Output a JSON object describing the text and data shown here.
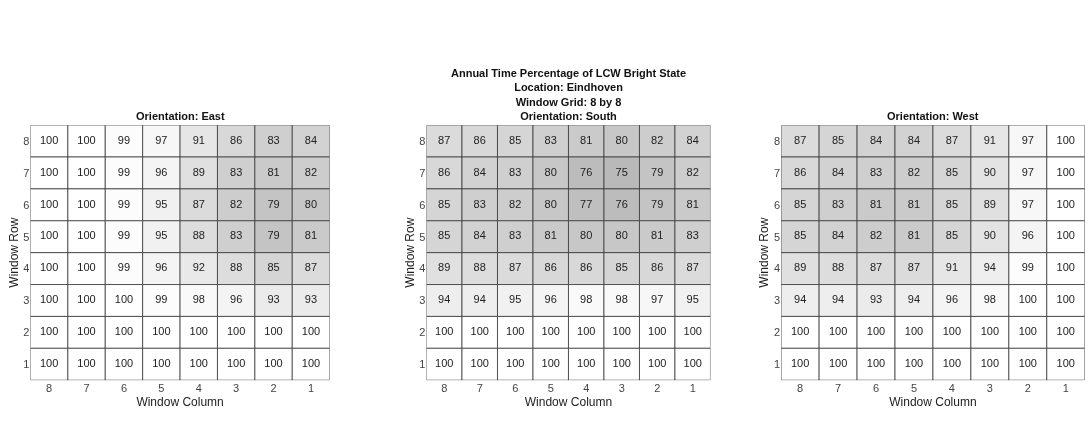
{
  "chart_data": [
    {
      "type": "heatmap",
      "title": "Orientation: East",
      "xlabel": "Window Column",
      "ylabel": "Window Row",
      "data_labels": true,
      "categories": [
        "8",
        "7",
        "6",
        "5",
        "4",
        "3",
        "2",
        "1"
      ],
      "y_categories": [
        "8",
        "7",
        "6",
        "5",
        "4",
        "3",
        "2",
        "1"
      ],
      "cells": [
        [
          100,
          100,
          99,
          97,
          91,
          86,
          83,
          84
        ],
        [
          100,
          100,
          99,
          96,
          89,
          83,
          81,
          82
        ],
        [
          100,
          100,
          99,
          95,
          87,
          82,
          79,
          80
        ],
        [
          100,
          100,
          99,
          95,
          88,
          83,
          79,
          81
        ],
        [
          100,
          100,
          99,
          96,
          92,
          88,
          85,
          87
        ],
        [
          100,
          100,
          100,
          99,
          98,
          96,
          93,
          93
        ],
        [
          100,
          100,
          100,
          100,
          100,
          100,
          100,
          100
        ],
        [
          100,
          100,
          100,
          100,
          100,
          100,
          100,
          100
        ]
      ]
    },
    {
      "type": "heatmap",
      "title": "Annual Time Percentage of LCW Bright State\nLocation: Eindhoven\nWindow Grid: 8 by 8\nOrientation: South",
      "xlabel": "Window Column",
      "ylabel": "Window Row",
      "data_labels": true,
      "categories": [
        "8",
        "7",
        "6",
        "5",
        "4",
        "3",
        "2",
        "1"
      ],
      "y_categories": [
        "8",
        "7",
        "6",
        "5",
        "4",
        "3",
        "2",
        "1"
      ],
      "cells": [
        [
          87,
          86,
          85,
          83,
          81,
          80,
          82,
          84
        ],
        [
          86,
          84,
          83,
          80,
          76,
          75,
          79,
          82
        ],
        [
          85,
          83,
          82,
          80,
          77,
          76,
          79,
          81
        ],
        [
          85,
          84,
          83,
          81,
          80,
          80,
          81,
          83
        ],
        [
          89,
          88,
          87,
          86,
          86,
          85,
          86,
          87
        ],
        [
          94,
          94,
          95,
          96,
          98,
          98,
          97,
          95
        ],
        [
          100,
          100,
          100,
          100,
          100,
          100,
          100,
          100
        ],
        [
          100,
          100,
          100,
          100,
          100,
          100,
          100,
          100
        ]
      ]
    },
    {
      "type": "heatmap",
      "title": "Orientation: West",
      "xlabel": "Window Column",
      "ylabel": "Window Row",
      "data_labels": true,
      "categories": [
        "8",
        "7",
        "6",
        "5",
        "4",
        "3",
        "2",
        "1"
      ],
      "y_categories": [
        "8",
        "7",
        "6",
        "5",
        "4",
        "3",
        "2",
        "1"
      ],
      "cells": [
        [
          87,
          85,
          84,
          84,
          87,
          91,
          97,
          100
        ],
        [
          86,
          84,
          83,
          82,
          85,
          90,
          97,
          100
        ],
        [
          85,
          83,
          81,
          81,
          85,
          89,
          97,
          100
        ],
        [
          85,
          84,
          82,
          81,
          85,
          90,
          96,
          100
        ],
        [
          89,
          88,
          87,
          87,
          91,
          94,
          99,
          100
        ],
        [
          94,
          94,
          93,
          94,
          96,
          98,
          100,
          100
        ],
        [
          100,
          100,
          100,
          100,
          100,
          100,
          100,
          100
        ],
        [
          100,
          100,
          100,
          100,
          100,
          100,
          100,
          100
        ]
      ]
    }
  ]
}
